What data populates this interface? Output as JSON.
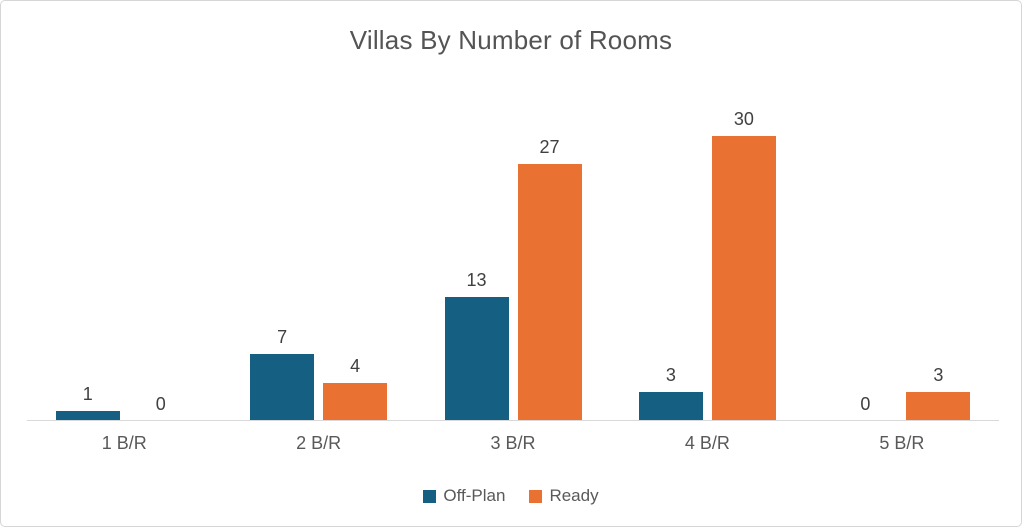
{
  "title": "Villas By Number of Rooms",
  "colors": {
    "offplan": "#156082",
    "ready": "#E97132",
    "axis_line": "#D9D9D9",
    "title_text": "#545454",
    "data_label_text": "#404040",
    "category_text": "#595959"
  },
  "chart_data": {
    "type": "bar",
    "title": "Villas By Number of Rooms",
    "categories": [
      "1 B/R",
      "2 B/R",
      "3 B/R",
      "4 B/R",
      "5 B/R"
    ],
    "series": [
      {
        "name": "Off-Plan",
        "color": "#156082",
        "values": [
          1,
          7,
          13,
          3,
          0
        ]
      },
      {
        "name": "Ready",
        "color": "#E97132",
        "values": [
          0,
          4,
          27,
          30,
          3
        ]
      }
    ],
    "ylim": [
      0,
      30
    ],
    "grid": false,
    "data_labels": true,
    "legend_position": "bottom"
  }
}
